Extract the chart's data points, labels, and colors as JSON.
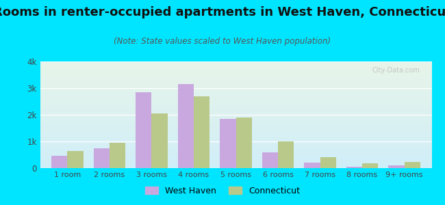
{
  "title": "Rooms in renter-occupied apartments in West Haven, Connecticut",
  "subtitle": "(Note: State values scaled to West Haven population)",
  "categories": [
    "1 room",
    "2 rooms",
    "3 rooms",
    "4 rooms",
    "5 rooms",
    "6 rooms",
    "7 rooms",
    "8 rooms",
    "9+ rooms"
  ],
  "west_haven": [
    450,
    750,
    2850,
    3150,
    1850,
    600,
    200,
    60,
    90
  ],
  "connecticut": [
    650,
    950,
    2050,
    2700,
    1900,
    1000,
    400,
    170,
    220
  ],
  "bar_color_wh": "#c9a8e0",
  "bar_color_ct": "#b8c98a",
  "background_outer": "#00e5ff",
  "ylim": [
    0,
    4000
  ],
  "yticks": [
    0,
    1000,
    2000,
    3000,
    4000
  ],
  "ytick_labels": [
    "0",
    "1k",
    "2k",
    "3k",
    "4k"
  ],
  "title_fontsize": 13,
  "subtitle_fontsize": 8.5,
  "watermark": "City-Data.com",
  "legend_wh": "West Haven",
  "legend_ct": "Connecticut"
}
